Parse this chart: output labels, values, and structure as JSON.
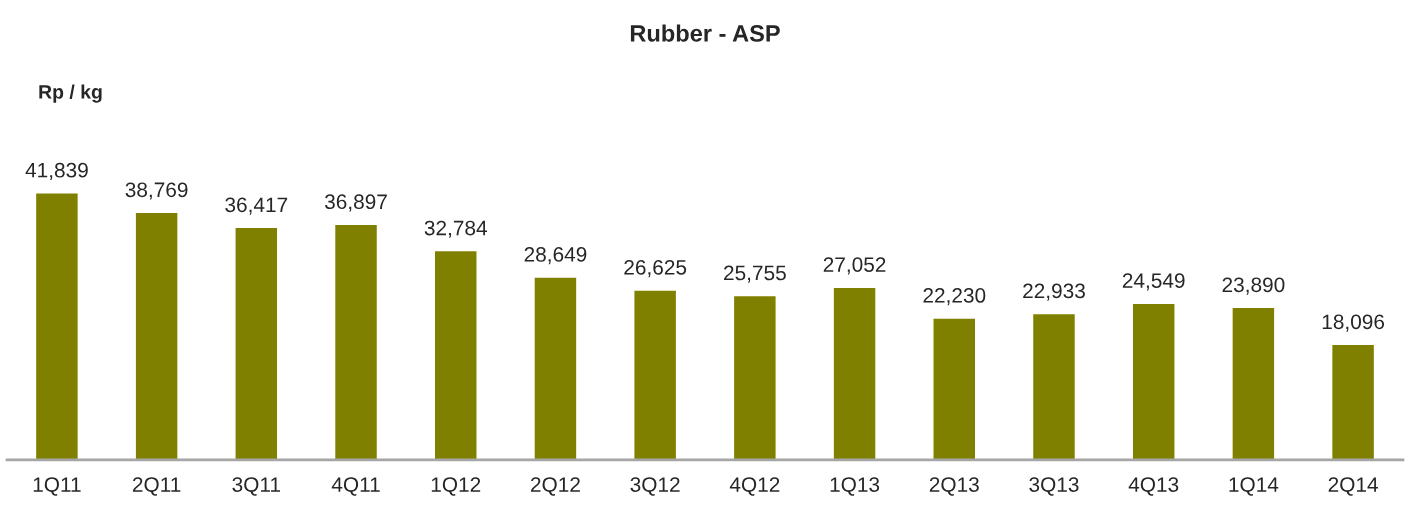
{
  "chart_data": {
    "type": "bar",
    "title": "Rubber - ASP",
    "ylabel": "Rp / kg",
    "categories": [
      "1Q11",
      "2Q11",
      "3Q11",
      "4Q11",
      "1Q12",
      "2Q12",
      "3Q12",
      "4Q12",
      "1Q13",
      "2Q13",
      "3Q13",
      "4Q13",
      "1Q14",
      "2Q14"
    ],
    "values": [
      41839,
      38769,
      36417,
      36897,
      32784,
      28649,
      26625,
      25755,
      27052,
      22230,
      22933,
      24549,
      23890,
      18096
    ],
    "value_labels": [
      "41,839",
      "38,769",
      "36,417",
      "36,897",
      "32,784",
      "28,649",
      "26,625",
      "25,755",
      "27,052",
      "22,230",
      "22,933",
      "24,549",
      "23,890",
      "18,096"
    ],
    "color": "#808000",
    "grid": false,
    "legend": false
  }
}
